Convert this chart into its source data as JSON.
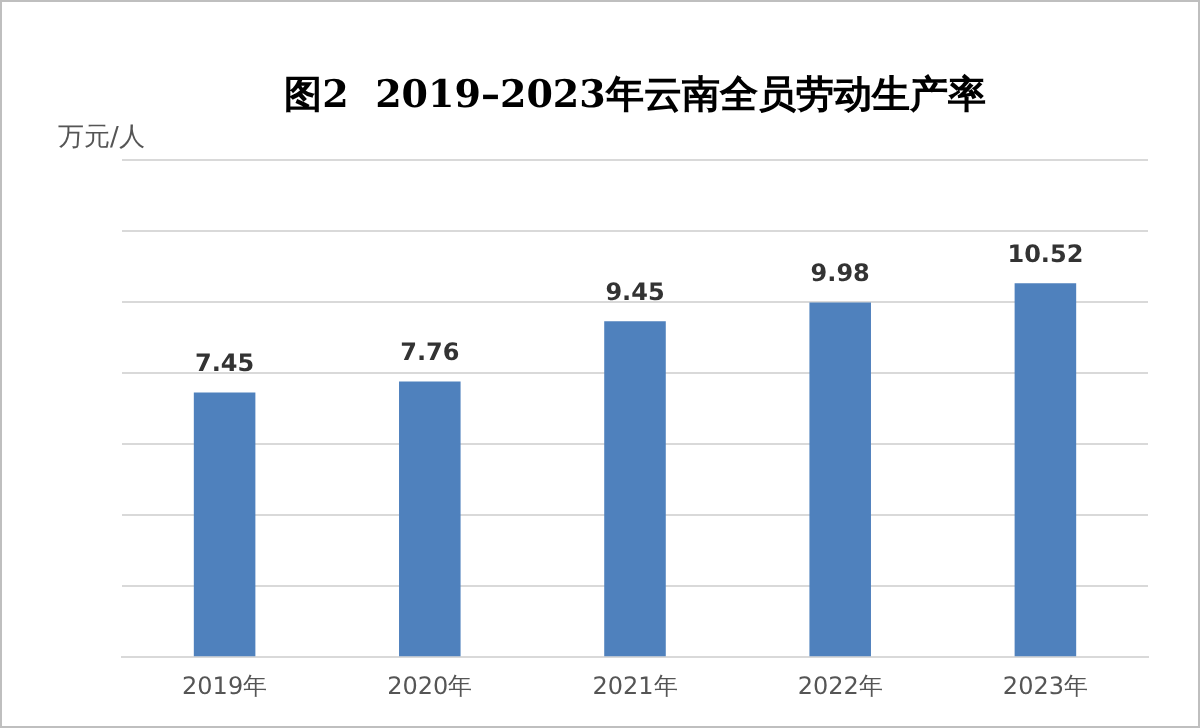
{
  "chart_data": {
    "type": "bar",
    "title": "图2  2019–2023年云南全员劳动生产率",
    "ylabel": "万元/人",
    "categories": [
      "2019年",
      "2020年",
      "2021年",
      "2022年",
      "2023年"
    ],
    "values": [
      7.45,
      7.76,
      9.45,
      9.98,
      10.52
    ],
    "color": "#4f81bd",
    "data_labels": true,
    "ylim": [
      0,
      14
    ],
    "yticks": [
      {
        "value": 0,
        "label": null
      },
      {
        "value": 2,
        "label": null
      },
      {
        "value": 4,
        "label": null
      },
      {
        "value": 6,
        "label": null
      },
      {
        "value": 8,
        "label": null
      },
      {
        "value": 10,
        "label": null
      },
      {
        "value": 12,
        "label": null
      },
      {
        "value": 14,
        "label": null
      }
    ],
    "grid": "y",
    "tick_labels": "x",
    "legend": false
  }
}
